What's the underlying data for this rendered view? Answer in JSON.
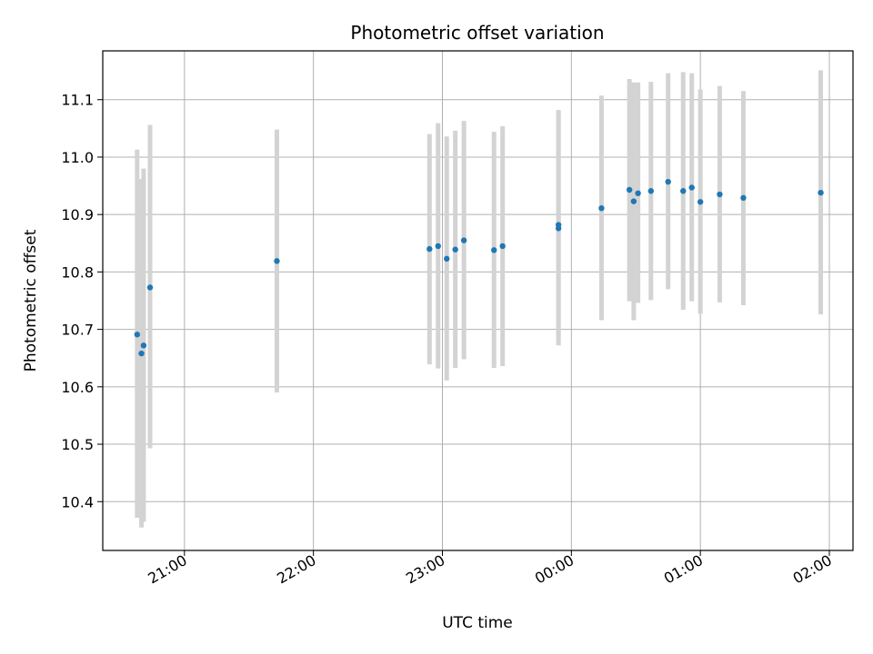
{
  "chart_data": {
    "type": "scatter",
    "title": "Photometric offset variation",
    "xlabel": "UTC time",
    "ylabel": "Photometric offset",
    "x_tick_labels": [
      "21:00",
      "22:00",
      "23:00",
      "00:00",
      "01:00",
      "02:00"
    ],
    "y_tick_labels": [
      "10.4",
      "10.5",
      "10.6",
      "10.7",
      "10.8",
      "10.9",
      "11.0",
      "11.1"
    ],
    "y_ticks": [
      10.4,
      10.5,
      10.6,
      10.7,
      10.8,
      10.9,
      11.0,
      11.1
    ],
    "ylim": [
      10.315,
      11.185
    ],
    "grid": true,
    "colors": {
      "point": "#1f77b4",
      "errorbar": "#d3d3d3",
      "grid": "#b0b0b0",
      "axis": "#000000"
    },
    "x_unit_note": "x values are UTC times",
    "xlim": [
      "20:22",
      "02:11"
    ],
    "x_ticks": [
      "21:00",
      "22:00",
      "23:00",
      "00:00",
      "01:00",
      "02:00"
    ],
    "points": [
      {
        "x": "20:38",
        "y": 10.691,
        "err_low": 10.372,
        "err_high": 11.013
      },
      {
        "x": "20:40",
        "y": 10.658,
        "err_low": 10.355,
        "err_high": 10.962
      },
      {
        "x": "20:41",
        "y": 10.672,
        "err_low": 10.365,
        "err_high": 10.98
      },
      {
        "x": "20:44",
        "y": 10.773,
        "err_low": 10.493,
        "err_high": 11.056
      },
      {
        "x": "21:43",
        "y": 10.819,
        "err_low": 10.59,
        "err_high": 11.048
      },
      {
        "x": "22:54",
        "y": 10.84,
        "err_low": 10.639,
        "err_high": 11.04
      },
      {
        "x": "22:58",
        "y": 10.845,
        "err_low": 10.632,
        "err_high": 11.059
      },
      {
        "x": "23:02",
        "y": 10.823,
        "err_low": 10.611,
        "err_high": 11.036
      },
      {
        "x": "23:06",
        "y": 10.839,
        "err_low": 10.633,
        "err_high": 11.046
      },
      {
        "x": "23:10",
        "y": 10.855,
        "err_low": 10.648,
        "err_high": 11.063
      },
      {
        "x": "23:24",
        "y": 10.838,
        "err_low": 10.633,
        "err_high": 11.044
      },
      {
        "x": "23:28",
        "y": 10.845,
        "err_low": 10.636,
        "err_high": 11.054
      },
      {
        "x": "23:54",
        "y": 10.876,
        "err_low": 10.672,
        "err_high": 11.08
      },
      {
        "x": "23:54",
        "y": 10.882,
        "err_low": 10.684,
        "err_high": 11.082
      },
      {
        "x": "00:14",
        "y": 10.911,
        "err_low": 10.716,
        "err_high": 11.107
      },
      {
        "x": "00:27",
        "y": 10.943,
        "err_low": 10.749,
        "err_high": 11.136
      },
      {
        "x": "00:29",
        "y": 10.923,
        "err_low": 10.716,
        "err_high": 11.13
      },
      {
        "x": "00:31",
        "y": 10.937,
        "err_low": 10.746,
        "err_high": 11.13
      },
      {
        "x": "00:37",
        "y": 10.941,
        "err_low": 10.751,
        "err_high": 11.131
      },
      {
        "x": "00:45",
        "y": 10.957,
        "err_low": 10.77,
        "err_high": 11.146
      },
      {
        "x": "00:52",
        "y": 10.941,
        "err_low": 10.734,
        "err_high": 11.148
      },
      {
        "x": "00:56",
        "y": 10.947,
        "err_low": 10.749,
        "err_high": 11.146
      },
      {
        "x": "01:00",
        "y": 10.922,
        "err_low": 10.727,
        "err_high": 11.118
      },
      {
        "x": "01:09",
        "y": 10.935,
        "err_low": 10.747,
        "err_high": 11.124
      },
      {
        "x": "01:20",
        "y": 10.929,
        "err_low": 10.742,
        "err_high": 11.115
      },
      {
        "x": "01:56",
        "y": 10.938,
        "err_low": 10.726,
        "err_high": 11.151
      }
    ]
  }
}
